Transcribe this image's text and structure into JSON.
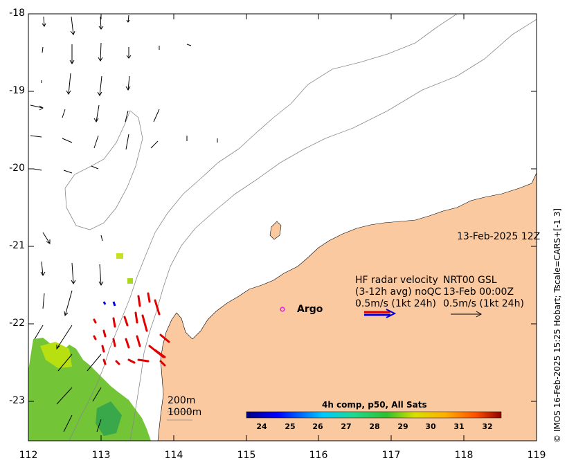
{
  "map": {
    "x_ticks": [
      "112",
      "113",
      "114",
      "115",
      "116",
      "117",
      "118",
      "119"
    ],
    "y_ticks": [
      "-18",
      "-19",
      "-20",
      "-21",
      "-22",
      "-23"
    ],
    "x_range": [
      112,
      119
    ],
    "y_range": [
      -23.5,
      -18
    ],
    "land_color": "#fbc99f",
    "timestamp": "13-Feb-2025 12Z",
    "argo_label": "Argo",
    "argo_color": "#e020e0",
    "argo_position": {
      "lon": 115.45,
      "lat": -21.87
    },
    "legend": {
      "hf_line1": "HF radar velocity",
      "hf_line2": "(3-12h avg) noQC",
      "hf_line3": "0.5m/s (1kt 24h)",
      "nrt_line1": "NRT00 GSL",
      "nrt_line2": "13-Feb 00:00Z",
      "nrt_line3": "0.5m/s (1kt 24h)"
    },
    "depth_labels": [
      "200m",
      "1000m"
    ],
    "colorbar": {
      "title": "4h comp, p50, All Sats",
      "ticks": [
        "24",
        "25",
        "26",
        "27",
        "28",
        "29",
        "30",
        "31",
        "32"
      ],
      "range": [
        23.5,
        32.5
      ]
    },
    "side_note": "© IMOS 16-Feb-2025 15:25 Hobart; Tscale=CARS+[-1 3]"
  }
}
